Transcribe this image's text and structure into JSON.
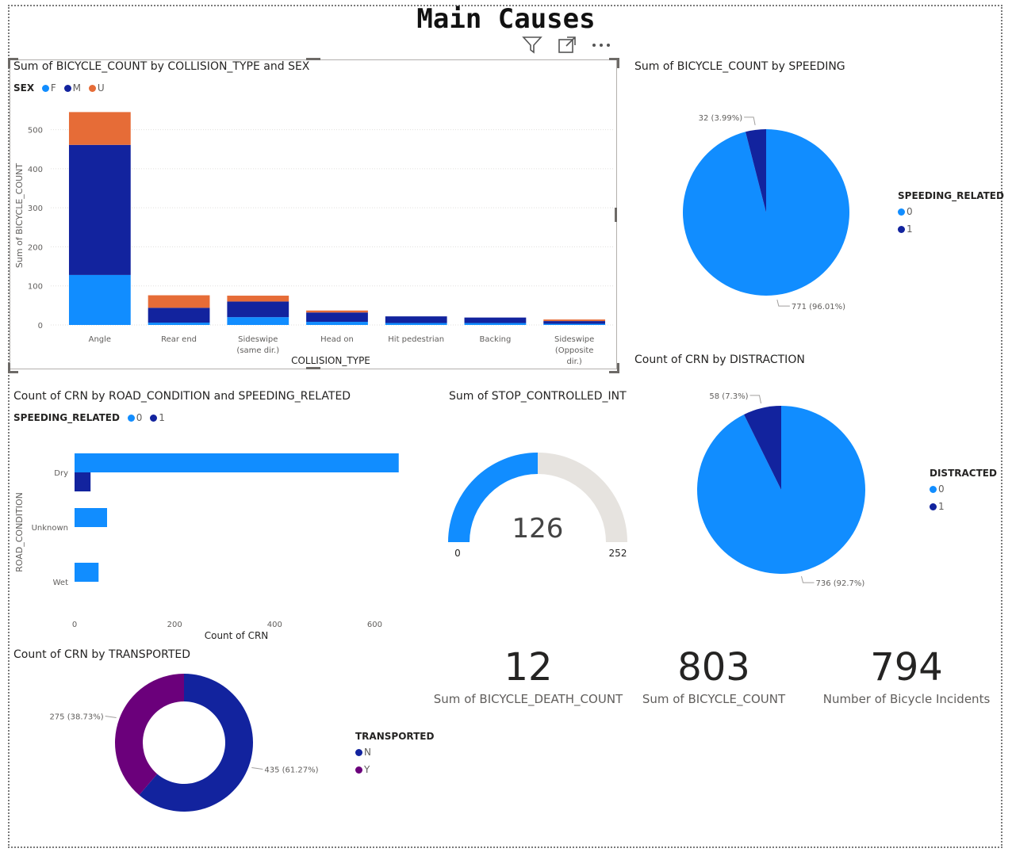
{
  "page_title": "Main Causes",
  "icons": [
    "filter-icon",
    "focus-mode-icon",
    "more-options-icon"
  ],
  "colors": {
    "F": "#118dff",
    "M": "#12239e",
    "U": "#e66c37",
    "series0": "#118dff",
    "series1": "#12239e",
    "purple": "#6b007b",
    "gauge_bg": "#e6e3df"
  },
  "chart_data": [
    {
      "type": "bar",
      "orientation": "vertical",
      "stacked": true,
      "title": "Sum of BICYCLE_COUNT by COLLISION_TYPE and SEX",
      "legend_title": "SEX",
      "legend_position": "top-left",
      "xlabel": "COLLISION_TYPE",
      "ylabel": "Sum of BICYCLE_COUNT",
      "ylim": [
        0,
        560
      ],
      "yticks": [
        0,
        100,
        200,
        300,
        400,
        500
      ],
      "grid": true,
      "categories": [
        "Angle",
        "Rear end",
        "Sideswipe (same dir.)",
        "Head on",
        "Hit pedestrian",
        "Backing",
        "Sideswipe (Opposite dir.)"
      ],
      "series": [
        {
          "name": "F",
          "color": "#118dff",
          "values": [
            128,
            6,
            20,
            8,
            5,
            5,
            3
          ]
        },
        {
          "name": "M",
          "color": "#12239e",
          "values": [
            333,
            38,
            40,
            24,
            17,
            14,
            7
          ]
        },
        {
          "name": "U",
          "color": "#e66c37",
          "values": [
            84,
            32,
            15,
            5,
            0,
            0,
            4
          ]
        }
      ]
    },
    {
      "type": "pie",
      "title": "Sum of BICYCLE_COUNT by SPEEDING",
      "legend_title": "SPEEDING_RELATED",
      "legend_position": "right",
      "slices": [
        {
          "label": "0",
          "value": 771,
          "data_label": "771 (96.01%)",
          "color": "#118dff"
        },
        {
          "label": "1",
          "value": 32,
          "data_label": "32 (3.99%)",
          "color": "#12239e"
        }
      ]
    },
    {
      "type": "bar",
      "orientation": "horizontal",
      "title": "Count of CRN by ROAD_CONDITION and SPEEDING_RELATED",
      "legend_title": "SPEEDING_RELATED",
      "legend_position": "top-left",
      "xlabel": "Count of CRN",
      "ylabel": "ROAD_CONDITION",
      "xlim": [
        0,
        650
      ],
      "xticks": [
        0,
        200,
        400,
        600
      ],
      "grid": false,
      "categories": [
        "Dry",
        "Unknown",
        "Wet"
      ],
      "series": [
        {
          "name": "0",
          "color": "#118dff",
          "values": [
            648,
            65,
            48
          ]
        },
        {
          "name": "1",
          "color": "#12239e",
          "values": [
            32,
            0,
            0
          ]
        }
      ]
    },
    {
      "type": "gauge",
      "title": "Sum of STOP_CONTROLLED_INT",
      "value": 126,
      "min": 0,
      "max": 252,
      "value_label": "126",
      "min_label": "0",
      "max_label": "252"
    },
    {
      "type": "pie",
      "title": "Count of CRN by DISTRACTION",
      "legend_title": "DISTRACTED",
      "legend_position": "right",
      "slices": [
        {
          "label": "0",
          "value": 736,
          "data_label": "736 (92.7%)",
          "color": "#118dff"
        },
        {
          "label": "1",
          "value": 58,
          "data_label": "58 (7.3%)",
          "color": "#12239e"
        }
      ]
    },
    {
      "type": "donut",
      "title": "Count of CRN by TRANSPORTED",
      "legend_title": "TRANSPORTED",
      "legend_position": "right",
      "slices": [
        {
          "label": "N",
          "value": 435,
          "data_label": "435 (61.27%)",
          "color": "#12239e"
        },
        {
          "label": "Y",
          "value": 275,
          "data_label": "275 (38.73%)",
          "color": "#6b007b"
        }
      ]
    }
  ],
  "cards": [
    {
      "value": "12",
      "label": "Sum of BICYCLE_DEATH_COUNT"
    },
    {
      "value": "803",
      "label": "Sum of BICYCLE_COUNT"
    },
    {
      "value": "794",
      "label": "Number of Bicycle Incidents"
    }
  ]
}
